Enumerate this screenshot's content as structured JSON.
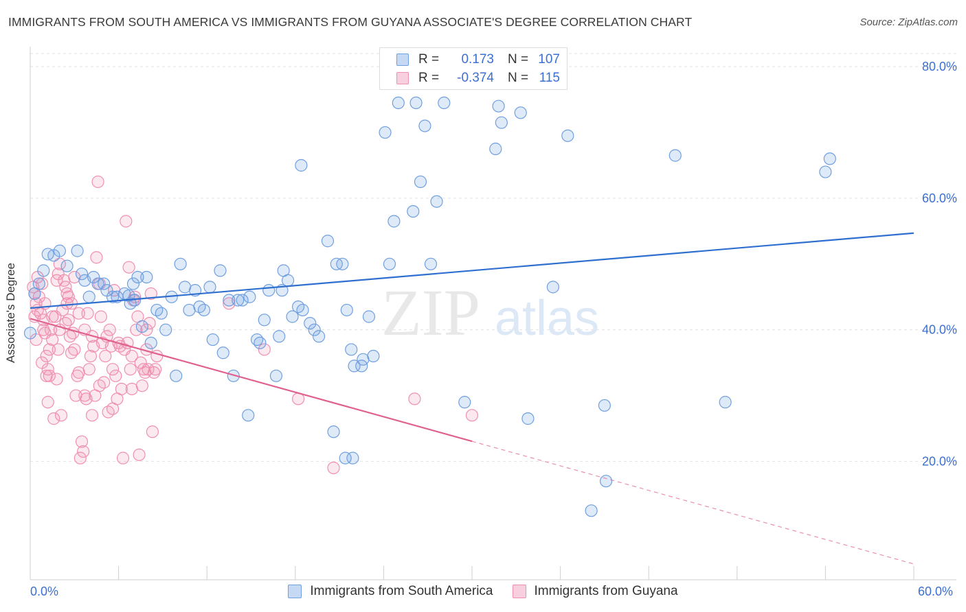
{
  "header": {
    "title": "IMMIGRANTS FROM SOUTH AMERICA VS IMMIGRANTS FROM GUYANA ASSOCIATE'S DEGREE CORRELATION CHART",
    "source": "Source: ZipAtlas.com"
  },
  "legend": {
    "r_label": "R =",
    "n_label": "N =",
    "rows": [
      {
        "r": "0.173",
        "n": "107"
      },
      {
        "r": "-0.374",
        "n": "115"
      }
    ]
  },
  "watermark": {
    "zip": "ZIP",
    "atlas": "atlas"
  },
  "chart_data": {
    "type": "scatter",
    "title": "IMMIGRANTS FROM SOUTH AMERICA VS IMMIGRANTS FROM GUYANA ASSOCIATE'S DEGREE CORRELATION CHART",
    "xlabel": "",
    "ylabel": "Associate's Degree",
    "xlim": [
      0,
      60
    ],
    "ylim": [
      2,
      82
    ],
    "x_tick_labels": [
      "0.0%",
      "60.0%"
    ],
    "y_ticks": [
      20,
      40,
      60,
      80
    ],
    "y_tick_labels": [
      "20.0%",
      "40.0%",
      "60.0%",
      "80.0%"
    ],
    "grid": true,
    "legend_position": "top-center",
    "colors": {
      "series1": "#6f9fe0",
      "series2": "#f08fb0",
      "line1": "#2f6fcf",
      "line2": "#e0608f",
      "tick_text": "#3b6fd1"
    },
    "series": [
      {
        "name": "Immigrants from South America",
        "color": "#6f9fe0",
        "trend": {
          "x": [
            0,
            60
          ],
          "y": [
            43.3,
            54.7
          ],
          "dashed_from": null
        },
        "points": [
          [
            0,
            39.5
          ],
          [
            0.3,
            45.5
          ],
          [
            0.6,
            47
          ],
          [
            0.9,
            49
          ],
          [
            1.2,
            51.5
          ],
          [
            1.6,
            51.3
          ],
          [
            2,
            52
          ],
          [
            2.5,
            49.7
          ],
          [
            3.2,
            52
          ],
          [
            3.5,
            48.5
          ],
          [
            3.7,
            47.5
          ],
          [
            4,
            45
          ],
          [
            4.3,
            48
          ],
          [
            4.6,
            47
          ],
          [
            5,
            47
          ],
          [
            5.2,
            46
          ],
          [
            5.6,
            45
          ],
          [
            5.9,
            45
          ],
          [
            6.4,
            45.5
          ],
          [
            6.7,
            45.2
          ],
          [
            7.1,
            44.5
          ],
          [
            6.8,
            44
          ],
          [
            7.3,
            48
          ],
          [
            7,
            47
          ],
          [
            7.6,
            40.5
          ],
          [
            7.9,
            48
          ],
          [
            8.2,
            38
          ],
          [
            8.6,
            43
          ],
          [
            8.9,
            42.5
          ],
          [
            9.2,
            40
          ],
          [
            9.6,
            45
          ],
          [
            9.9,
            33
          ],
          [
            10.2,
            50
          ],
          [
            10.5,
            46.5
          ],
          [
            10.8,
            43
          ],
          [
            11.2,
            46
          ],
          [
            11.5,
            43.5
          ],
          [
            11.8,
            43
          ],
          [
            12.2,
            46.5
          ],
          [
            12.4,
            38.5
          ],
          [
            12.9,
            49
          ],
          [
            13.1,
            36.5
          ],
          [
            13.5,
            44.5
          ],
          [
            14.1,
            44.5
          ],
          [
            13.8,
            33
          ],
          [
            14.4,
            44.5
          ],
          [
            14.8,
            27
          ],
          [
            14.9,
            45
          ],
          [
            15.4,
            38.5
          ],
          [
            15.6,
            38
          ],
          [
            15.9,
            41.5
          ],
          [
            16.2,
            46
          ],
          [
            16.7,
            33
          ],
          [
            16.9,
            39
          ],
          [
            17.1,
            46
          ],
          [
            17.5,
            47.5
          ],
          [
            17.8,
            42
          ],
          [
            17.2,
            49
          ],
          [
            18.2,
            43.5
          ],
          [
            18.5,
            43
          ],
          [
            19,
            41
          ],
          [
            19.3,
            40
          ],
          [
            19.6,
            39
          ],
          [
            18.4,
            65
          ],
          [
            20.2,
            53.5
          ],
          [
            20.8,
            50
          ],
          [
            20.6,
            24.5
          ],
          [
            21.2,
            50
          ],
          [
            21.5,
            43
          ],
          [
            21.8,
            37
          ],
          [
            22,
            34.5
          ],
          [
            22.5,
            34.5
          ],
          [
            22.6,
            35.5
          ],
          [
            21.9,
            20.5
          ],
          [
            21.4,
            20.5
          ],
          [
            23,
            42
          ],
          [
            23.3,
            36
          ],
          [
            24.1,
            70
          ],
          [
            24.4,
            50
          ],
          [
            24.7,
            56.5
          ],
          [
            25,
            74.5
          ],
          [
            26.2,
            74.5
          ],
          [
            26,
            58
          ],
          [
            26.5,
            62.5
          ],
          [
            26.8,
            71
          ],
          [
            27.2,
            50
          ],
          [
            27.6,
            59.5
          ],
          [
            28.1,
            74.5
          ],
          [
            28.5,
            79
          ],
          [
            29.5,
            29
          ],
          [
            31.6,
            67.5
          ],
          [
            31.8,
            74
          ],
          [
            32,
            71.5
          ],
          [
            33.3,
            73
          ],
          [
            33.8,
            26.5
          ],
          [
            35.5,
            46.5
          ],
          [
            36.5,
            69.5
          ],
          [
            39,
            28.5
          ],
          [
            39.1,
            17
          ],
          [
            38.1,
            12.5
          ],
          [
            43.8,
            66.5
          ],
          [
            47.2,
            29
          ],
          [
            54,
            64
          ],
          [
            54.3,
            66
          ]
        ]
      },
      {
        "name": "Immigrants from Guyana",
        "color": "#f08fb0",
        "trend": {
          "x": [
            0,
            60
          ],
          "y": [
            41.7,
            4.4
          ],
          "dashed_from": 30
        },
        "points": [
          [
            0.2,
            46.5
          ],
          [
            0.3,
            45.5
          ],
          [
            0.4,
            44
          ],
          [
            0.5,
            48
          ],
          [
            0.6,
            45
          ],
          [
            0.7,
            42.5
          ],
          [
            0.8,
            47
          ],
          [
            0.9,
            40
          ],
          [
            1,
            44
          ],
          [
            1.1,
            36
          ],
          [
            1.1,
            33
          ],
          [
            1.2,
            34
          ],
          [
            1.3,
            37
          ],
          [
            1.4,
            40
          ],
          [
            1.5,
            42
          ],
          [
            1.6,
            26.5
          ],
          [
            1.7,
            42
          ],
          [
            1.8,
            47.5
          ],
          [
            1.9,
            48.5
          ],
          [
            2,
            50
          ],
          [
            2.1,
            27
          ],
          [
            2.2,
            43
          ],
          [
            2.3,
            47.5
          ],
          [
            2.4,
            46.5
          ],
          [
            2.5,
            45.5
          ],
          [
            2.6,
            41.5
          ],
          [
            2.7,
            39
          ],
          [
            2.8,
            36.5
          ],
          [
            2.9,
            39.5
          ],
          [
            3,
            37
          ],
          [
            3.1,
            30
          ],
          [
            3.2,
            33
          ],
          [
            3.3,
            33.5
          ],
          [
            3.4,
            20.5
          ],
          [
            3.5,
            23
          ],
          [
            3.6,
            21.5
          ],
          [
            3.7,
            40
          ],
          [
            3.8,
            29.5
          ],
          [
            3.9,
            42.5
          ],
          [
            4,
            34
          ],
          [
            4.1,
            36
          ],
          [
            4.2,
            39
          ],
          [
            4.3,
            37.5
          ],
          [
            4.4,
            30
          ],
          [
            4.5,
            51
          ],
          [
            4.6,
            62.5
          ],
          [
            4.7,
            47
          ],
          [
            4.8,
            42
          ],
          [
            4.9,
            38
          ],
          [
            5,
            32
          ],
          [
            5.1,
            36
          ],
          [
            5.2,
            39
          ],
          [
            5.3,
            27.5
          ],
          [
            5.4,
            40
          ],
          [
            5.5,
            37.5
          ],
          [
            5.6,
            28
          ],
          [
            5.7,
            46
          ],
          [
            5.8,
            33
          ],
          [
            5.9,
            29.5
          ],
          [
            6,
            38
          ],
          [
            6.1,
            37.5
          ],
          [
            6.2,
            31
          ],
          [
            6.3,
            20.5
          ],
          [
            6.4,
            37
          ],
          [
            6.5,
            56.5
          ],
          [
            6.6,
            38
          ],
          [
            6.7,
            49.5
          ],
          [
            6.8,
            34
          ],
          [
            6.9,
            31
          ],
          [
            7,
            44.5
          ],
          [
            7.1,
            45
          ],
          [
            7.2,
            40
          ],
          [
            7.3,
            42
          ],
          [
            7.4,
            21
          ],
          [
            7.5,
            35
          ],
          [
            7.6,
            31.5
          ],
          [
            7.7,
            34
          ],
          [
            7.8,
            33.5
          ],
          [
            7.9,
            37
          ],
          [
            8,
            34
          ],
          [
            8.1,
            41
          ],
          [
            8.2,
            45.5
          ],
          [
            8.3,
            24.5
          ],
          [
            8.4,
            33.5
          ],
          [
            8.5,
            34
          ],
          [
            8.6,
            36
          ],
          [
            1,
            39.5
          ],
          [
            1.5,
            38.5
          ],
          [
            2,
            40
          ],
          [
            2.5,
            44
          ],
          [
            0.3,
            42
          ],
          [
            0.5,
            43
          ],
          [
            0.8,
            35
          ],
          [
            1.2,
            29
          ],
          [
            1.8,
            32.5
          ],
          [
            2.4,
            41
          ],
          [
            2.8,
            44
          ],
          [
            3.3,
            42.5
          ],
          [
            3.7,
            30
          ],
          [
            4.2,
            27
          ],
          [
            0.4,
            38.5
          ],
          [
            0.9,
            41.5
          ],
          [
            1.3,
            33
          ],
          [
            1.9,
            37
          ],
          [
            2.6,
            45
          ],
          [
            3,
            48
          ],
          [
            4.7,
            31.5
          ],
          [
            5.6,
            34
          ],
          [
            6.9,
            36
          ],
          [
            7.9,
            40
          ],
          [
            13.5,
            44
          ],
          [
            15.9,
            37
          ],
          [
            18.2,
            29.5
          ],
          [
            20.6,
            19
          ],
          [
            26.1,
            29.5
          ],
          [
            30,
            27
          ]
        ]
      }
    ]
  }
}
